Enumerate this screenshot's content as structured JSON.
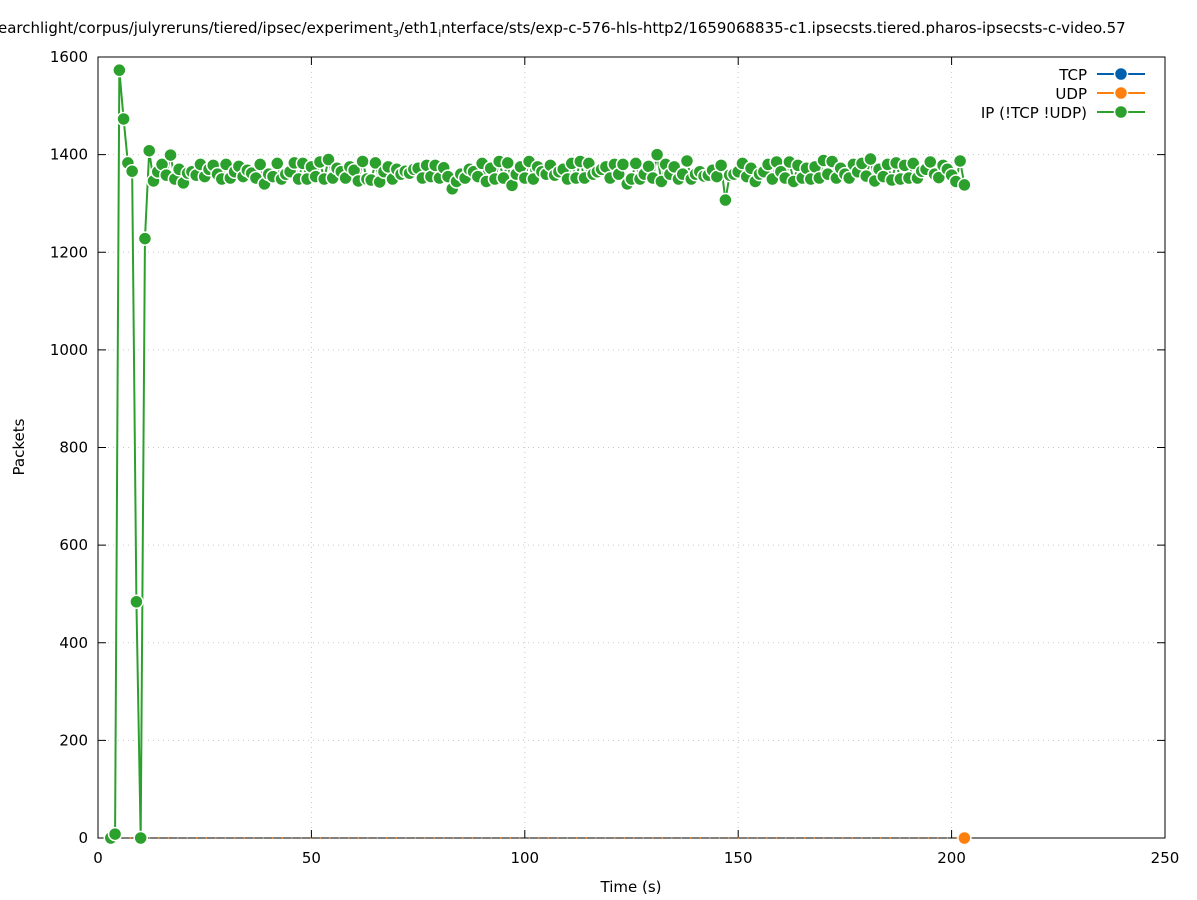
{
  "title_parts": [
    "earchlight/corpus/julyreruns/tiered/ipsec/experiment",
    "3",
    "/eth1",
    "i",
    "nterface/sts/exp-c-576-hls-http2/1659068835-c1.ipsecsts.tiered.pharos-ipsecsts-c-video.57"
  ],
  "chart_data": {
    "type": "line",
    "xlabel": "Time (s)",
    "ylabel": "Packets",
    "xlim": [
      0,
      250
    ],
    "ylim": [
      0,
      1600
    ],
    "xticks": [
      0,
      50,
      100,
      150,
      200,
      250
    ],
    "yticks": [
      0,
      200,
      400,
      600,
      800,
      1000,
      1200,
      1400,
      1600
    ],
    "grid": true,
    "legend_placement": "top-right",
    "x_start": 3,
    "series": [
      {
        "name": "TCP",
        "color": "#0060ad",
        "values": []
      },
      {
        "name": "UDP",
        "color": "#ff7f0e",
        "values": "zeros"
      },
      {
        "name": "IP (!TCP  !UDP)",
        "color": "#2ca02c",
        "values": [
          0,
          8,
          1573,
          1473,
          1383,
          1366,
          484,
          0,
          1228,
          1408,
          1346,
          1365,
          1380,
          1358,
          1399,
          1350,
          1370,
          1342,
          1362,
          1365,
          1358,
          1380,
          1355,
          1370,
          1378,
          1360,
          1350,
          1380,
          1352,
          1365,
          1376,
          1355,
          1368,
          1362,
          1352,
          1380,
          1340,
          1360,
          1355,
          1382,
          1350,
          1360,
          1365,
          1383,
          1350,
          1382,
          1350,
          1375,
          1355,
          1385,
          1350,
          1390,
          1352,
          1372,
          1365,
          1352,
          1375,
          1368,
          1346,
          1386,
          1350,
          1348,
          1383,
          1344,
          1365,
          1375,
          1350,
          1370,
          1360,
          1366,
          1362,
          1370,
          1372,
          1352,
          1378,
          1355,
          1378,
          1352,
          1373,
          1355,
          1330,
          1345,
          1360,
          1352,
          1370,
          1365,
          1355,
          1382,
          1345,
          1372,
          1350,
          1386,
          1352,
          1383,
          1337,
          1360,
          1375,
          1352,
          1386,
          1350,
          1375,
          1365,
          1360,
          1378,
          1358,
          1365,
          1370,
          1350,
          1382,
          1352,
          1386,
          1352,
          1382,
          1360,
          1365,
          1370,
          1375,
          1352,
          1380,
          1360,
          1380,
          1340,
          1350,
          1382,
          1350,
          1360,
          1376,
          1352,
          1400,
          1345,
          1380,
          1360,
          1375,
          1350,
          1360,
          1387,
          1350,
          1360,
          1365,
          1356,
          1358,
          1368,
          1355,
          1378,
          1307,
          1358,
          1360,
          1365,
          1382,
          1355,
          1372,
          1345,
          1360,
          1365,
          1380,
          1350,
          1385,
          1365,
          1352,
          1385,
          1345,
          1378,
          1352,
          1372,
          1350,
          1375,
          1352,
          1388,
          1360,
          1386,
          1352,
          1372,
          1360,
          1352,
          1380,
          1365,
          1382,
          1356,
          1391,
          1346,
          1370,
          1355,
          1380,
          1348,
          1383,
          1350,
          1378,
          1352,
          1382,
          1352,
          1366,
          1370,
          1385,
          1360,
          1353,
          1378,
          1370,
          1358,
          1345,
          1387,
          1338
        ]
      }
    ]
  }
}
